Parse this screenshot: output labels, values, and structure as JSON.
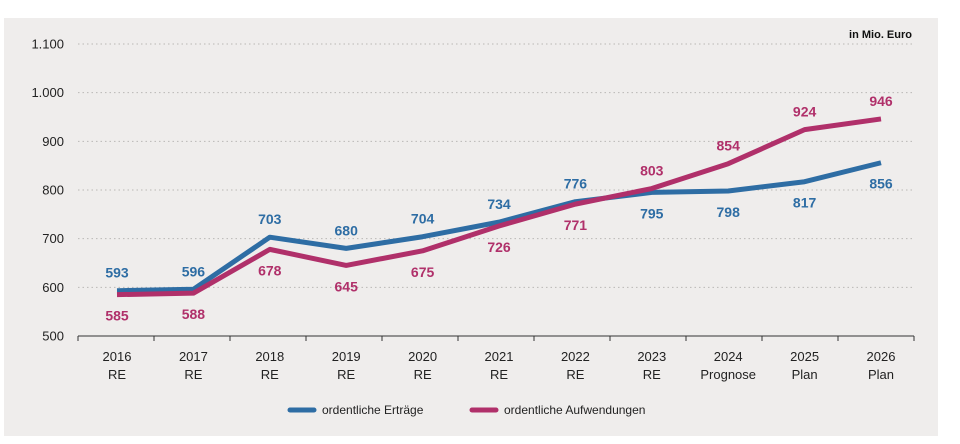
{
  "chart_data": {
    "type": "line",
    "unit": "in Mio. Euro",
    "categories": [
      [
        "2016",
        "RE"
      ],
      [
        "2017",
        "RE"
      ],
      [
        "2018",
        "RE"
      ],
      [
        "2019",
        "RE"
      ],
      [
        "2020",
        "RE"
      ],
      [
        "2021",
        "RE"
      ],
      [
        "2022",
        "RE"
      ],
      [
        "2023",
        "RE"
      ],
      [
        "2024",
        "Prognose"
      ],
      [
        "2025",
        "Plan"
      ],
      [
        "2026",
        "Plan"
      ]
    ],
    "y_ticks": [
      "1.100",
      "1.000",
      "900",
      "800",
      "700",
      "600",
      "500"
    ],
    "y_tick_values": [
      1100,
      1000,
      900,
      800,
      700,
      600,
      500
    ],
    "ylim": [
      500,
      1100
    ],
    "grid": "horizontal-dotted",
    "legend_position": "bottom",
    "series": [
      {
        "name": "ordentliche Erträge",
        "color": "#2e6da4",
        "values": [
          593,
          596,
          703,
          680,
          704,
          734,
          776,
          795,
          798,
          817,
          856
        ],
        "labels": [
          "593",
          "596",
          "703",
          "680",
          "704",
          "734",
          "776",
          "795",
          "798",
          "817",
          "856"
        ],
        "label_side": [
          "above",
          "above",
          "above",
          "above",
          "above",
          "above",
          "above",
          "below",
          "below",
          "below",
          "below"
        ]
      },
      {
        "name": "ordentliche Aufwendungen",
        "color": "#b0306a",
        "values": [
          585,
          588,
          678,
          645,
          675,
          726,
          771,
          803,
          854,
          924,
          946
        ],
        "labels": [
          "585",
          "588",
          "678",
          "645",
          "675",
          "726",
          "771",
          "803",
          "854",
          "924",
          "946"
        ],
        "label_side": [
          "below",
          "below",
          "below",
          "below",
          "below",
          "below",
          "below",
          "above",
          "above",
          "above",
          "above"
        ]
      }
    ]
  }
}
